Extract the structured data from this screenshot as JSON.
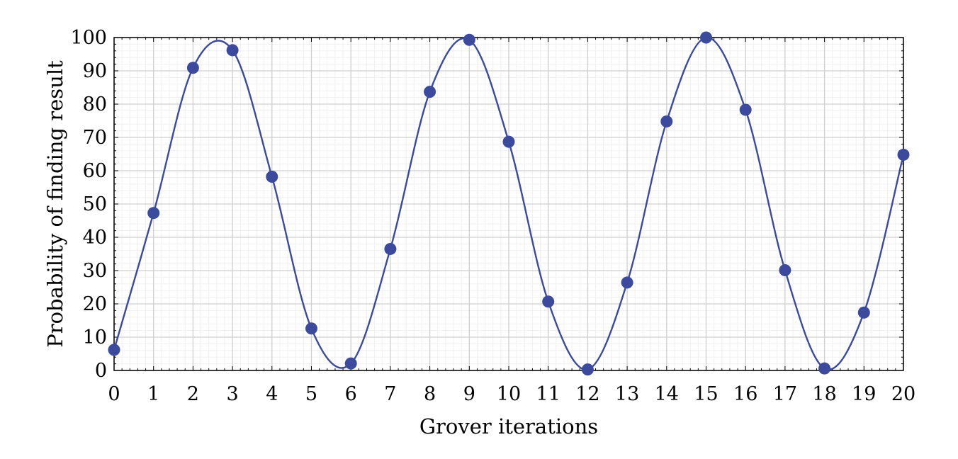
{
  "chart_data": {
    "type": "line",
    "title": "",
    "xlabel": "Grover iterations",
    "ylabel": "Probability of finding result",
    "xlim": [
      0,
      20
    ],
    "ylim": [
      0,
      100
    ],
    "xticks": [
      0,
      1,
      2,
      3,
      4,
      5,
      6,
      7,
      8,
      9,
      10,
      11,
      12,
      13,
      14,
      15,
      16,
      17,
      18,
      19,
      20
    ],
    "yticks": [
      0,
      10,
      20,
      30,
      40,
      50,
      60,
      70,
      80,
      90,
      100
    ],
    "grid": true,
    "smooth_curve": true,
    "series": [
      {
        "name": "Probability",
        "color": "#3b4a9c",
        "x": [
          0,
          1,
          2,
          3,
          4,
          5,
          6,
          7,
          8,
          9,
          10,
          11,
          12,
          13,
          14,
          15,
          16,
          17,
          18,
          19,
          20
        ],
        "values": [
          6.2,
          47.3,
          90.9,
          96.2,
          58.2,
          12.6,
          2.1,
          36.5,
          83.7,
          99.3,
          68.7,
          20.7,
          0.3,
          26.4,
          74.8,
          100,
          78.3,
          30.1,
          0.6,
          17.4,
          64.8
        ]
      }
    ]
  }
}
